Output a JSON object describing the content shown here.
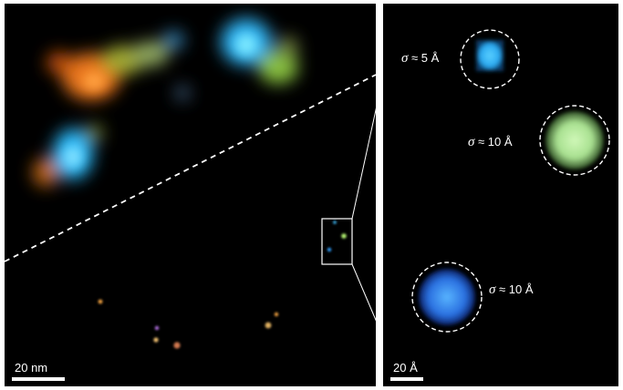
{
  "left_panel": {
    "scale_bar_label": "20 nm",
    "blurred_spots_color_names": [
      "orange",
      "green",
      "cyan",
      "yellow-green",
      "blue"
    ],
    "point_emitter_colors": [
      "#f0a040",
      "#b070e0",
      "#f0c070",
      "#d07850",
      "#e0b060",
      "#f0a040",
      "#40c0ff",
      "#b0f070",
      "#30a0ff"
    ]
  },
  "right_panel": {
    "scale_bar_label": "20 Å",
    "spots": [
      {
        "symbol": "σ",
        "relation": "≈ 5 Å",
        "color": "#30b8ff"
      },
      {
        "symbol": "σ",
        "relation": "≈ 10 Å",
        "color": "#b8f0a0"
      },
      {
        "symbol": "σ",
        "relation": "≈ 10 Å",
        "color": "#3090ff"
      }
    ]
  }
}
